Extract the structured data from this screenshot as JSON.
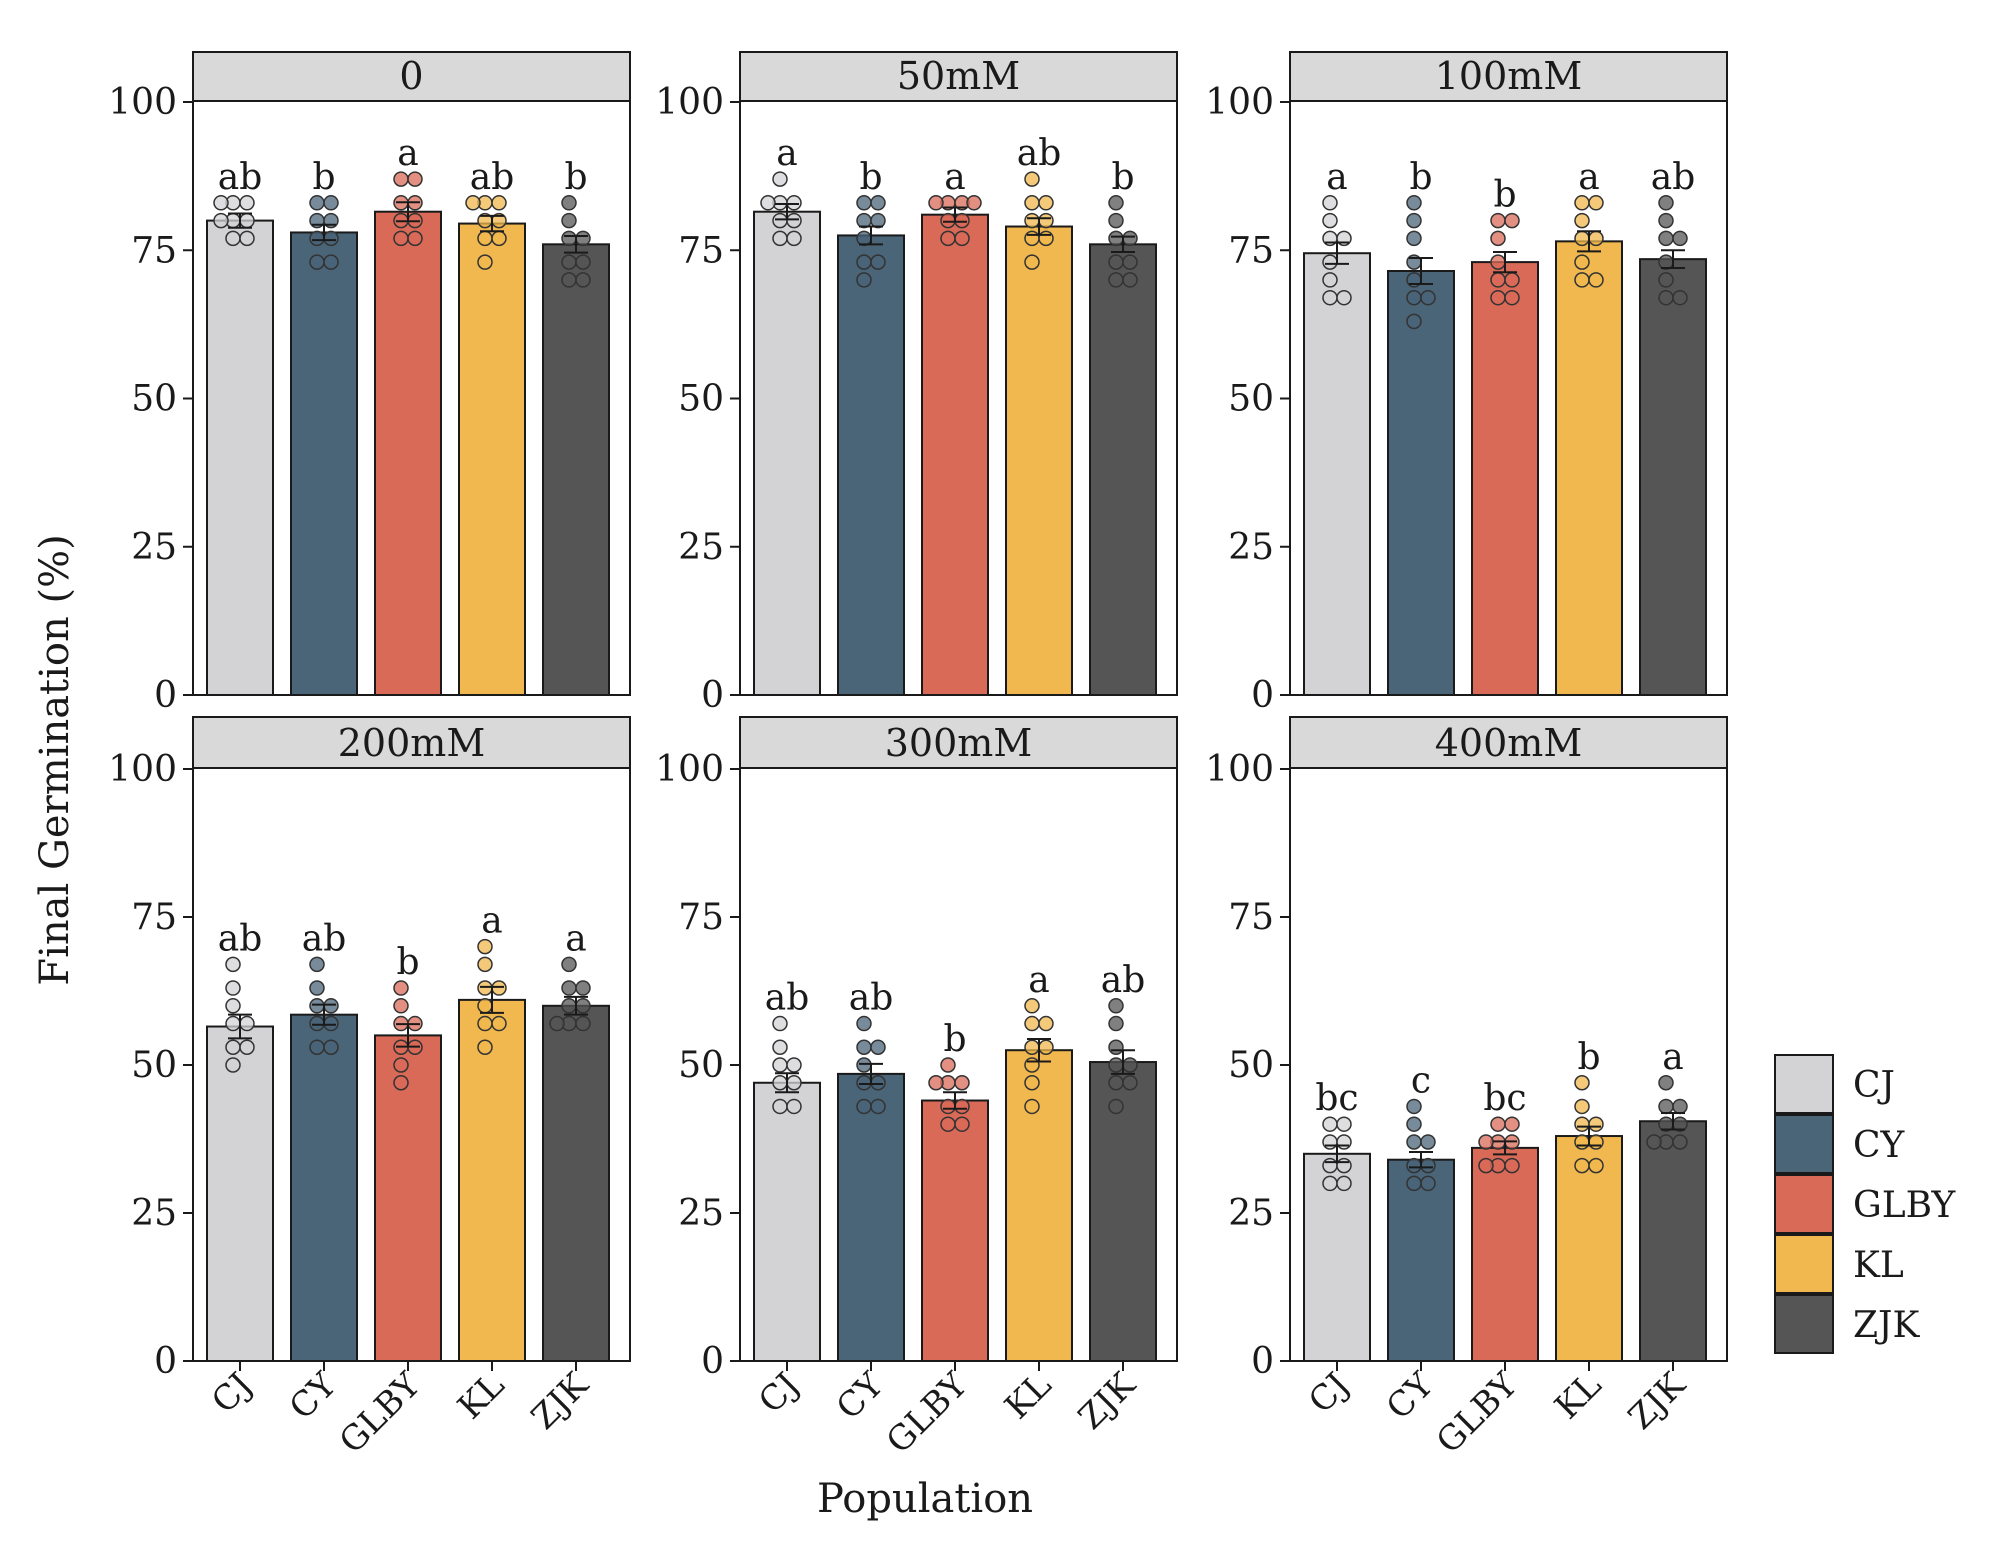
{
  "chart_data": {
    "type": "bar",
    "ylabel": "Final Germination (%)",
    "xlabel": "Population",
    "ylim": [
      0,
      100
    ],
    "yticks": [
      0,
      25,
      50,
      75,
      100
    ],
    "categories": [
      "CJ",
      "CY",
      "GLBY",
      "KL",
      "ZJK"
    ],
    "colors": {
      "CJ": "#d3d3d5",
      "CY": "#4a6478",
      "GLBY": "#d96a58",
      "KL": "#f0b84e",
      "ZJK": "#555555"
    },
    "legend": {
      "position": "right",
      "entries": [
        "CJ",
        "CY",
        "GLBY",
        "KL",
        "ZJK"
      ]
    },
    "panels": [
      {
        "title": "0",
        "means": [
          80,
          78,
          81.5,
          79.5,
          76
        ],
        "se": [
          1.2,
          1.3,
          1.6,
          1.3,
          1.4
        ],
        "letters": [
          "ab",
          "b",
          "a",
          "ab",
          "b"
        ],
        "points": [
          [
            77,
            77,
            80,
            80,
            80,
            83,
            83,
            83
          ],
          [
            73,
            73,
            77,
            77,
            80,
            80,
            83,
            83
          ],
          [
            77,
            77,
            80,
            80,
            83,
            83,
            87,
            87
          ],
          [
            73,
            77,
            77,
            80,
            80,
            83,
            83,
            83
          ],
          [
            70,
            70,
            73,
            73,
            77,
            77,
            80,
            83
          ]
        ]
      },
      {
        "title": "50mM",
        "means": [
          81.5,
          77.5,
          81,
          79,
          76
        ],
        "se": [
          1.3,
          1.5,
          1.2,
          1.4,
          1.3
        ],
        "letters": [
          "a",
          "b",
          "a",
          "ab",
          "b"
        ],
        "points": [
          [
            77,
            77,
            80,
            80,
            83,
            83,
            83,
            87
          ],
          [
            70,
            73,
            73,
            77,
            80,
            80,
            83,
            83
          ],
          [
            77,
            77,
            80,
            80,
            83,
            83,
            83,
            83
          ],
          [
            73,
            77,
            77,
            80,
            80,
            83,
            83,
            87
          ],
          [
            70,
            70,
            73,
            73,
            77,
            77,
            80,
            83
          ]
        ]
      },
      {
        "title": "100mM",
        "means": [
          74.5,
          71.5,
          73,
          76.5,
          73.5
        ],
        "se": [
          1.8,
          2.2,
          1.7,
          1.7,
          1.5
        ],
        "letters": [
          "a",
          "b",
          "b",
          "a",
          "ab"
        ],
        "points": [
          [
            67,
            67,
            70,
            73,
            77,
            77,
            80,
            83
          ],
          [
            63,
            67,
            67,
            70,
            73,
            77,
            80,
            83
          ],
          [
            67,
            67,
            70,
            70,
            73,
            77,
            80,
            80
          ],
          [
            70,
            70,
            73,
            77,
            77,
            80,
            83,
            83
          ],
          [
            67,
            67,
            70,
            73,
            77,
            77,
            80,
            83
          ]
        ]
      },
      {
        "title": "200mM",
        "means": [
          56.5,
          58.5,
          55,
          61,
          60
        ],
        "se": [
          2.0,
          1.7,
          1.9,
          2.2,
          1.5
        ],
        "letters": [
          "ab",
          "ab",
          "b",
          "a",
          "a"
        ],
        "points": [
          [
            50,
            53,
            53,
            57,
            57,
            60,
            63,
            67
          ],
          [
            53,
            53,
            57,
            57,
            60,
            60,
            63,
            67
          ],
          [
            47,
            50,
            53,
            53,
            57,
            57,
            60,
            63
          ],
          [
            53,
            57,
            57,
            60,
            63,
            63,
            67,
            70
          ],
          [
            57,
            57,
            57,
            60,
            60,
            63,
            63,
            67
          ]
        ]
      },
      {
        "title": "300mM",
        "means": [
          47,
          48.5,
          44,
          52.5,
          50.5
        ],
        "se": [
          1.6,
          1.7,
          1.4,
          1.9,
          2.0
        ],
        "letters": [
          "ab",
          "ab",
          "b",
          "a",
          "ab"
        ],
        "points": [
          [
            43,
            43,
            47,
            47,
            50,
            50,
            53,
            57
          ],
          [
            43,
            43,
            47,
            47,
            50,
            53,
            53,
            57
          ],
          [
            40,
            40,
            43,
            43,
            47,
            47,
            47,
            50
          ],
          [
            43,
            47,
            50,
            53,
            53,
            57,
            57,
            60
          ],
          [
            43,
            47,
            47,
            50,
            50,
            53,
            57,
            60
          ]
        ]
      },
      {
        "title": "400mM",
        "means": [
          35,
          34,
          36,
          38,
          40.5
        ],
        "se": [
          1.4,
          1.3,
          1.1,
          1.6,
          1.4
        ],
        "letters": [
          "bc",
          "c",
          "bc",
          "b",
          "a"
        ],
        "points": [
          [
            30,
            30,
            33,
            33,
            37,
            37,
            40,
            40
          ],
          [
            30,
            30,
            33,
            33,
            37,
            37,
            40,
            43
          ],
          [
            33,
            33,
            33,
            37,
            37,
            37,
            40,
            40
          ],
          [
            33,
            33,
            37,
            37,
            40,
            40,
            43,
            47
          ],
          [
            37,
            37,
            37,
            40,
            40,
            43,
            43,
            47
          ]
        ]
      }
    ]
  }
}
